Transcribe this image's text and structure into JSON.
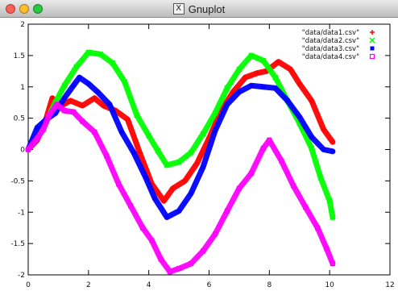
{
  "window": {
    "title": "Gnuplot",
    "app_icon_glyph": "X",
    "controls": {
      "close_color": "#ff5f57",
      "minimize_color": "#ffbd2e",
      "zoom_color": "#28c840"
    }
  },
  "chart_data": {
    "type": "line",
    "title": "",
    "xlabel": "",
    "ylabel": "",
    "xlim": [
      0,
      12
    ],
    "ylim": [
      -2,
      2
    ],
    "x_ticks": [
      "0",
      "2",
      "4",
      "6",
      "8",
      "10",
      "12"
    ],
    "y_ticks": [
      "2",
      "1.5",
      "1",
      "0.5",
      "0",
      "-0.5",
      "-1",
      "-1.5",
      "-2"
    ],
    "grid": false,
    "legend_position": "top-right",
    "series": [
      {
        "name": "\"data/data1.csv\"",
        "color": "#ff0000",
        "marker": "+",
        "values": [
          [
            0,
            0
          ],
          [
            0.3,
            0.15
          ],
          [
            0.6,
            0.5
          ],
          [
            0.8,
            0.82
          ],
          [
            1.1,
            0.7
          ],
          [
            1.4,
            0.78
          ],
          [
            1.8,
            0.7
          ],
          [
            2.2,
            0.82
          ],
          [
            2.5,
            0.7
          ],
          [
            2.9,
            0.62
          ],
          [
            3.3,
            0.48
          ],
          [
            3.7,
            -0.05
          ],
          [
            4.1,
            -0.55
          ],
          [
            4.5,
            -0.82
          ],
          [
            4.8,
            -0.62
          ],
          [
            5.2,
            -0.5
          ],
          [
            5.6,
            -0.22
          ],
          [
            6.0,
            0.18
          ],
          [
            6.4,
            0.62
          ],
          [
            6.8,
            0.92
          ],
          [
            7.2,
            1.15
          ],
          [
            7.6,
            1.22
          ],
          [
            7.9,
            1.25
          ],
          [
            8.3,
            1.4
          ],
          [
            8.7,
            1.28
          ],
          [
            9.0,
            1.05
          ],
          [
            9.4,
            0.78
          ],
          [
            9.8,
            0.32
          ],
          [
            10.1,
            0.12
          ]
        ]
      },
      {
        "name": "\"data/data2.csv\"",
        "color": "#00ff00",
        "marker": "x",
        "values": [
          [
            0,
            0
          ],
          [
            0.3,
            0.2
          ],
          [
            0.6,
            0.45
          ],
          [
            0.9,
            0.75
          ],
          [
            1.2,
            1.02
          ],
          [
            1.6,
            1.32
          ],
          [
            2.0,
            1.55
          ],
          [
            2.4,
            1.52
          ],
          [
            2.8,
            1.38
          ],
          [
            3.2,
            1.08
          ],
          [
            3.6,
            0.55
          ],
          [
            4.0,
            0.22
          ],
          [
            4.3,
            -0.02
          ],
          [
            4.6,
            -0.25
          ],
          [
            5.0,
            -0.2
          ],
          [
            5.4,
            -0.05
          ],
          [
            5.8,
            0.25
          ],
          [
            6.2,
            0.58
          ],
          [
            6.6,
            0.98
          ],
          [
            7.0,
            1.28
          ],
          [
            7.4,
            1.5
          ],
          [
            7.8,
            1.42
          ],
          [
            8.2,
            1.15
          ],
          [
            8.6,
            0.78
          ],
          [
            9.0,
            0.42
          ],
          [
            9.4,
            0.02
          ],
          [
            9.7,
            -0.45
          ],
          [
            10.0,
            -0.82
          ],
          [
            10.1,
            -1.08
          ]
        ]
      },
      {
        "name": "\"data/data3.csv\"",
        "color": "#0000ff",
        "marker": "*",
        "values": [
          [
            0,
            0
          ],
          [
            0.3,
            0.35
          ],
          [
            0.6,
            0.48
          ],
          [
            0.9,
            0.58
          ],
          [
            1.2,
            0.82
          ],
          [
            1.5,
            1.02
          ],
          [
            1.7,
            1.15
          ],
          [
            2.0,
            1.05
          ],
          [
            2.3,
            0.92
          ],
          [
            2.7,
            0.72
          ],
          [
            3.1,
            0.28
          ],
          [
            3.5,
            -0.05
          ],
          [
            3.9,
            -0.45
          ],
          [
            4.2,
            -0.78
          ],
          [
            4.6,
            -1.08
          ],
          [
            5.0,
            -0.98
          ],
          [
            5.4,
            -0.7
          ],
          [
            5.8,
            -0.28
          ],
          [
            6.2,
            0.3
          ],
          [
            6.6,
            0.72
          ],
          [
            7.0,
            0.92
          ],
          [
            7.4,
            1.02
          ],
          [
            7.8,
            1.0
          ],
          [
            8.2,
            0.98
          ],
          [
            8.6,
            0.78
          ],
          [
            9.0,
            0.52
          ],
          [
            9.4,
            0.2
          ],
          [
            9.8,
            0.0
          ],
          [
            10.1,
            -0.03
          ]
        ]
      },
      {
        "name": "\"data/data4.csv\"",
        "color": "#ff00ff",
        "marker": "□",
        "values": [
          [
            0,
            0
          ],
          [
            0.3,
            0.18
          ],
          [
            0.5,
            0.32
          ],
          [
            0.7,
            0.55
          ],
          [
            0.95,
            0.72
          ],
          [
            1.2,
            0.62
          ],
          [
            1.5,
            0.6
          ],
          [
            1.8,
            0.45
          ],
          [
            2.2,
            0.28
          ],
          [
            2.6,
            -0.1
          ],
          [
            3.0,
            -0.55
          ],
          [
            3.4,
            -0.9
          ],
          [
            3.8,
            -1.25
          ],
          [
            4.1,
            -1.45
          ],
          [
            4.4,
            -1.75
          ],
          [
            4.7,
            -1.95
          ],
          [
            5.0,
            -1.9
          ],
          [
            5.4,
            -1.82
          ],
          [
            5.8,
            -1.62
          ],
          [
            6.2,
            -1.35
          ],
          [
            6.6,
            -0.98
          ],
          [
            7.0,
            -0.62
          ],
          [
            7.4,
            -0.38
          ],
          [
            7.8,
            0.02
          ],
          [
            8.0,
            0.15
          ],
          [
            8.4,
            -0.18
          ],
          [
            8.8,
            -0.58
          ],
          [
            9.2,
            -0.92
          ],
          [
            9.6,
            -1.25
          ],
          [
            9.9,
            -1.58
          ],
          [
            10.1,
            -1.82
          ]
        ]
      }
    ]
  }
}
